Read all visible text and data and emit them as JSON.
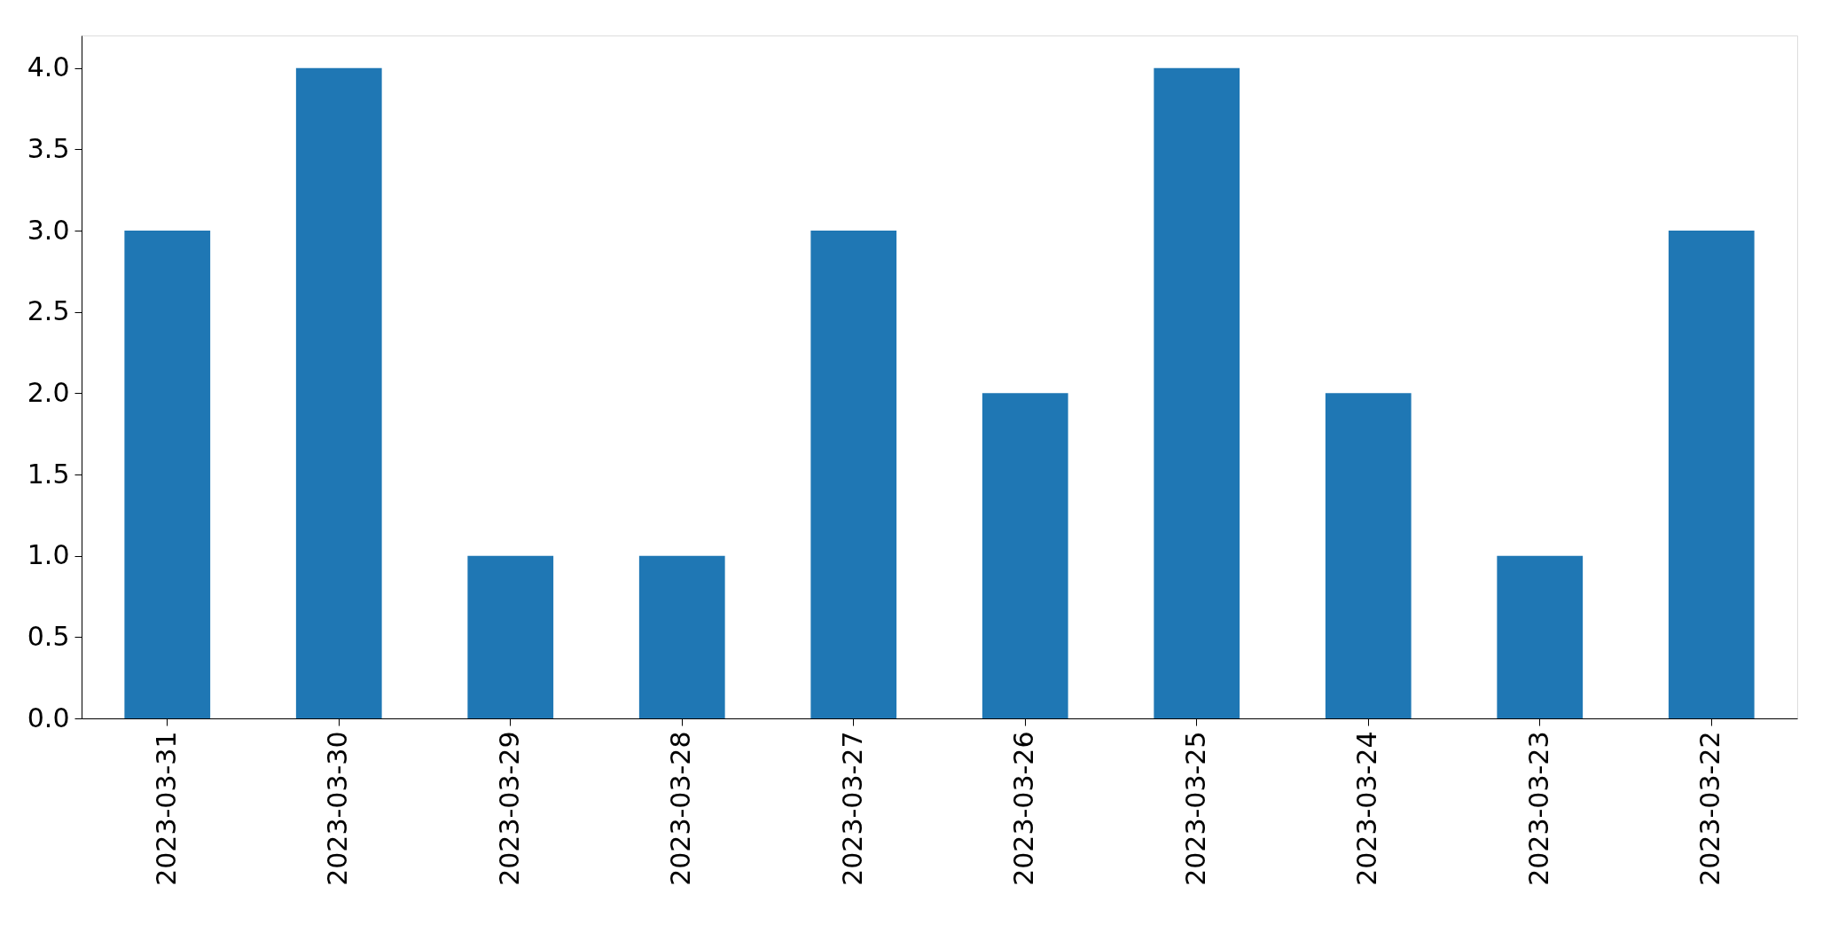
{
  "chart_data": {
    "type": "bar",
    "categories": [
      "2023-03-31",
      "2023-03-30",
      "2023-03-29",
      "2023-03-28",
      "2023-03-27",
      "2023-03-26",
      "2023-03-25",
      "2023-03-24",
      "2023-03-23",
      "2023-03-22"
    ],
    "values": [
      3,
      4,
      1,
      1,
      3,
      2,
      4,
      2,
      1,
      3
    ],
    "color": "#1f77b4",
    "ylim": [
      0,
      4.2
    ],
    "yticks": [
      {
        "value": 0,
        "label": "0.0"
      },
      {
        "value": 0.5,
        "label": "0.5"
      },
      {
        "value": 1,
        "label": "1.0"
      },
      {
        "value": 1.5,
        "label": "1.5"
      },
      {
        "value": 2,
        "label": "2.0"
      },
      {
        "value": 2.5,
        "label": "2.5"
      },
      {
        "value": 3,
        "label": "3.0"
      },
      {
        "value": 3.5,
        "label": "3.5"
      },
      {
        "value": 4,
        "label": "4.0"
      }
    ],
    "grid": false
  }
}
